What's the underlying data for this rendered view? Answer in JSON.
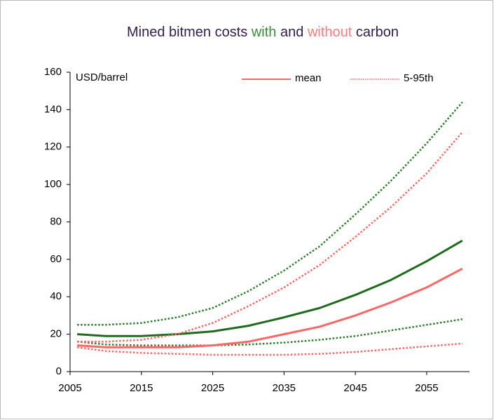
{
  "chart_data": {
    "type": "line",
    "title_parts": [
      {
        "text": "Mined bitmen costs ",
        "color": "#2e1f4f"
      },
      {
        "text": "with",
        "color": "#3c8c3c"
      },
      {
        "text": " and ",
        "color": "#2e1f4f"
      },
      {
        "text": "without",
        "color": "#ff7f7f"
      },
      {
        "text": " carbon",
        "color": "#2e1f4f"
      }
    ],
    "y_label": "USD/barrel",
    "legend": [
      {
        "name": "mean",
        "color": "#ff6666",
        "dash": "solid"
      },
      {
        "name": "5-95th",
        "color": "#ff6666",
        "dash": "dotted"
      }
    ],
    "x": [
      2006,
      2010,
      2015,
      2020,
      2025,
      2030,
      2035,
      2040,
      2045,
      2050,
      2055,
      2060
    ],
    "series": [
      {
        "color": "#2e7d2e",
        "dash": "dotted",
        "values": [
          25,
          25,
          26,
          29,
          34,
          43,
          54,
          67,
          84,
          102,
          122,
          144
        ]
      },
      {
        "color": "#1e6b1e",
        "dash": "solid",
        "values": [
          20,
          19,
          19,
          20,
          21.5,
          24.5,
          29,
          34,
          41,
          49,
          59,
          70
        ]
      },
      {
        "color": "#2e7d2e",
        "dash": "dotted",
        "values": [
          16,
          14.5,
          14,
          14,
          14,
          14.5,
          15.5,
          17,
          19,
          22,
          25,
          28
        ]
      },
      {
        "color": "#ff6666",
        "dash": "dotted",
        "values": [
          16,
          16,
          17,
          20,
          26,
          35,
          45,
          57,
          72,
          88,
          106,
          128
        ]
      },
      {
        "color": "#ff6666",
        "dash": "solid",
        "values": [
          14,
          13,
          13,
          13,
          14,
          16,
          20,
          24,
          30,
          37,
          45,
          55
        ]
      },
      {
        "color": "#ff6666",
        "dash": "dotted",
        "values": [
          13,
          11,
          10,
          9.5,
          9,
          9,
          9,
          9.5,
          10.5,
          12,
          13.5,
          15
        ]
      }
    ],
    "xlim": [
      2005,
      2061
    ],
    "xticks": [
      2005,
      2015,
      2025,
      2035,
      2045,
      2055
    ],
    "ylim": [
      0,
      160
    ],
    "yticks": [
      0,
      20,
      40,
      60,
      80,
      100,
      120,
      140,
      160
    ]
  }
}
